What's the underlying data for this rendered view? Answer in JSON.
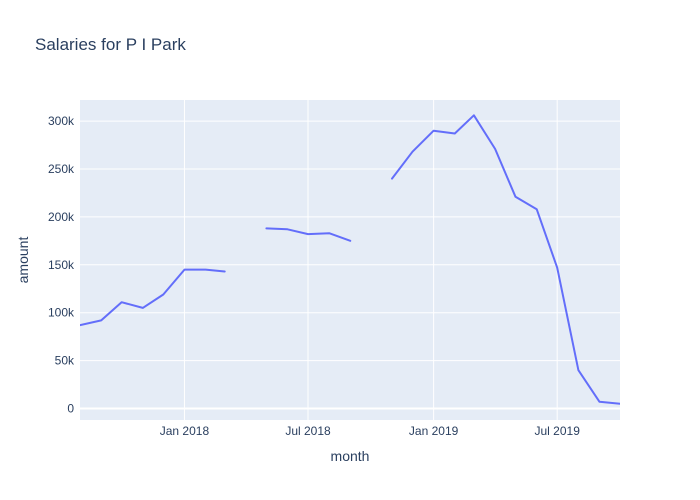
{
  "chart_data": {
    "type": "line",
    "title": "Salaries for P I Park",
    "xlabel": "month",
    "ylabel": "amount",
    "x_ticks": [
      "2018-01-01",
      "2018-07-01",
      "2019-01-01",
      "2019-07-01"
    ],
    "x_tick_labels": [
      "Jan 2018",
      "Jul 2018",
      "Jan 2019",
      "Jul 2019"
    ],
    "y_ticks": [
      0,
      50000,
      100000,
      150000,
      200000,
      250000,
      300000
    ],
    "y_tick_labels": [
      "0",
      "50k",
      "100k",
      "150k",
      "200k",
      "250k",
      "300k"
    ],
    "xlim": [
      "2017-08-01",
      "2019-10-01"
    ],
    "ylim": [
      -12000,
      322000
    ],
    "grid": true,
    "colors": {
      "line": "#636efa",
      "plot_bg": "#e5ecf6",
      "grid": "#ffffff",
      "text": "#2a3f5f"
    },
    "series": [
      {
        "x": [
          "2017-08-01",
          "2017-09-01",
          "2017-10-01",
          "2017-11-01",
          "2017-12-01",
          "2018-01-01",
          "2018-02-01",
          "2018-03-01",
          "2018-04-01",
          "2018-05-01",
          "2018-06-01",
          "2018-07-01",
          "2018-08-01",
          "2018-09-01",
          "2018-10-01",
          "2018-11-01",
          "2018-12-01",
          "2019-01-01",
          "2019-02-01",
          "2019-03-01",
          "2019-04-01",
          "2019-05-01",
          "2019-06-01",
          "2019-07-01",
          "2019-08-01",
          "2019-09-01",
          "2019-10-01"
        ],
        "values": [
          87000,
          92000,
          111000,
          105000,
          119000,
          145000,
          145000,
          143000,
          null,
          188000,
          187000,
          182000,
          183000,
          175000,
          null,
          240000,
          268000,
          290000,
          287000,
          306000,
          271000,
          221000,
          208000,
          147000,
          40000,
          7000,
          5000
        ]
      }
    ]
  }
}
